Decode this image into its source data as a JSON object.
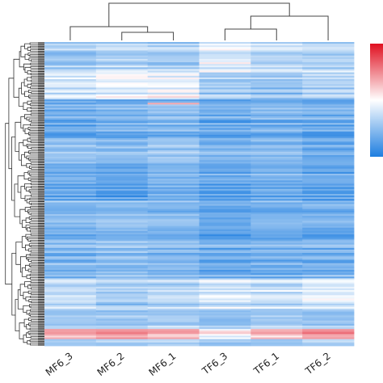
{
  "chart_data": {
    "type": "heatmap",
    "columns": [
      "MF6_3",
      "MF6_2",
      "MF6_1",
      "TF6_3",
      "TF6_1",
      "TF6_2"
    ],
    "n_rows": 180,
    "value_range": [
      -2,
      2
    ],
    "colorscale": {
      "low": "#1e7ee0",
      "mid": "#ffffff",
      "high": "#e01020"
    },
    "column_dendrogram": [
      [
        "MF6_2",
        "MF6_1"
      ],
      [
        "MF6_3",
        "MF6_2+MF6_1"
      ],
      [
        "TF6_3",
        "TF6_1"
      ],
      [
        "TF6_3+TF6_1",
        "TF6_2"
      ],
      [
        "MF",
        "TF"
      ]
    ],
    "row_dendrogram": true,
    "colorbar": {
      "position": "right",
      "ticks": []
    },
    "blocks": [
      {
        "rows": [
          0,
          18
        ],
        "values": [
          -0.8,
          -0.6,
          -0.7,
          -0.3,
          -0.5,
          -0.6
        ]
      },
      {
        "rows": [
          18,
          34
        ],
        "values": [
          -0.4,
          -0.2,
          -0.1,
          -0.8,
          -0.9,
          -0.7
        ]
      },
      {
        "rows": [
          34,
          56
        ],
        "values": [
          -1.3,
          -1.2,
          -1.1,
          -1.3,
          -1.2,
          -1.3
        ]
      },
      {
        "rows": [
          56,
          72
        ],
        "values": [
          -1.0,
          -1.1,
          -0.9,
          -1.2,
          -1.1,
          -1.3
        ]
      },
      {
        "rows": [
          72,
          94
        ],
        "values": [
          -1.3,
          -1.4,
          -1.2,
          -1.4,
          -1.3,
          -1.4
        ]
      },
      {
        "rows": [
          94,
          118
        ],
        "values": [
          -1.1,
          -1.0,
          -1.1,
          -1.3,
          -1.2,
          -1.2
        ]
      },
      {
        "rows": [
          118,
          140
        ],
        "values": [
          -1.0,
          -0.9,
          -1.0,
          -1.2,
          -1.1,
          -1.1
        ]
      },
      {
        "rows": [
          140,
          158
        ],
        "values": [
          -0.6,
          -0.8,
          -0.7,
          -0.4,
          -0.5,
          -0.3
        ]
      },
      {
        "rows": [
          158,
          170
        ],
        "values": [
          -0.9,
          -0.9,
          -0.8,
          -1.0,
          -0.9,
          -1.0
        ]
      },
      {
        "rows": [
          170,
          176
        ],
        "values": [
          0.8,
          0.9,
          0.7,
          0.1,
          0.6,
          0.9
        ]
      },
      {
        "rows": [
          176,
          180
        ],
        "values": [
          -0.7,
          -0.6,
          -0.5,
          -0.8,
          -0.7,
          -0.6
        ]
      }
    ],
    "highlights": [
      {
        "row": 36,
        "col": 2,
        "value": 0.7
      },
      {
        "row": 20,
        "col": 1,
        "value": 0.1
      },
      {
        "row": 12,
        "col": 3,
        "value": 0.2
      },
      {
        "row": 150,
        "col": 3,
        "value": 0.0
      },
      {
        "row": 152,
        "col": 5,
        "value": 0.1
      }
    ]
  }
}
